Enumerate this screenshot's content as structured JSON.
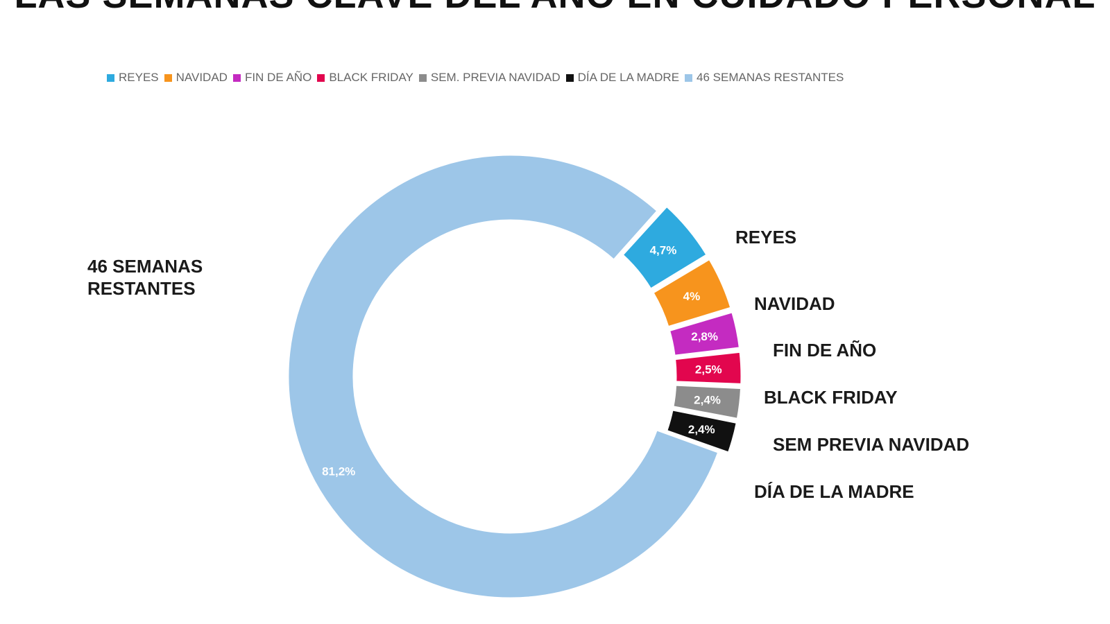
{
  "chart_data": {
    "type": "pie",
    "title": "LAS SEMANAS CLAVE DEL AÑO EN CUIDADO PERSONAL",
    "legend": [
      {
        "label": "REYES",
        "color": "#2eaadf"
      },
      {
        "label": "NAVIDAD",
        "color": "#f7941d"
      },
      {
        "label": "FIN DE AÑO",
        "color": "#c42bc1"
      },
      {
        "label": "BLACK FRIDAY",
        "color": "#e2064e"
      },
      {
        "label": "SEM. PREVIA NAVIDAD",
        "color": "#8c8c8c"
      },
      {
        "label": "DÍA DE LA MADRE",
        "color": "#111111"
      },
      {
        "label": "46 SEMANAS RESTANTES",
        "color": "#9dc6e8"
      }
    ],
    "legend_position": "top",
    "slices": [
      {
        "name": "REYES",
        "value": 4.7,
        "value_label": "4,7%",
        "callout": "REYES",
        "color": "#2eaadf",
        "exploded": true
      },
      {
        "name": "NAVIDAD",
        "value": 4.0,
        "value_label": "4%",
        "callout": "NAVIDAD",
        "color": "#f7941d",
        "exploded": true
      },
      {
        "name": "FIN DE AÑO",
        "value": 2.8,
        "value_label": "2,8%",
        "callout": "FIN DE AÑO",
        "color": "#c42bc1",
        "exploded": true
      },
      {
        "name": "BLACK FRIDAY",
        "value": 2.5,
        "value_label": "2,5%",
        "callout": "BLACK FRIDAY",
        "color": "#e2064e",
        "exploded": true
      },
      {
        "name": "SEM. PREVIA NAVIDAD",
        "value": 2.4,
        "value_label": "2,4%",
        "callout": "SEM PREVIA NAVIDAD",
        "color": "#8c8c8c",
        "exploded": true
      },
      {
        "name": "DÍA DE LA MADRE",
        "value": 2.4,
        "value_label": "2,4%",
        "callout": "DÍA DE LA MADRE",
        "color": "#111111",
        "exploded": true
      },
      {
        "name": "46 SEMANAS RESTANTES",
        "value": 81.2,
        "value_label": "81,2%",
        "callout": "46 SEMANAS RESTANTES",
        "color": "#9dc6e8",
        "exploded": false
      }
    ]
  }
}
